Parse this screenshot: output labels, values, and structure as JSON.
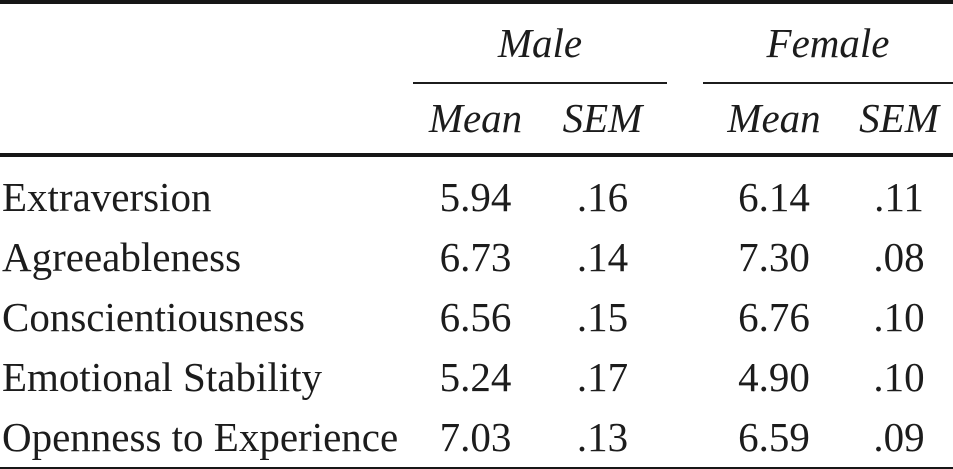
{
  "table": {
    "groups": [
      {
        "label": "Male"
      },
      {
        "label": "Female"
      }
    ],
    "subheaders": [
      "Mean",
      "SEM",
      "Mean",
      "SEM"
    ],
    "rows": [
      {
        "label": "Extraversion",
        "values": [
          "5.94",
          ".16",
          "6.14",
          ".11"
        ]
      },
      {
        "label": "Agreeableness",
        "values": [
          "6.73",
          ".14",
          "7.30",
          ".08"
        ]
      },
      {
        "label": "Conscientiousness",
        "values": [
          "6.56",
          ".15",
          "6.76",
          ".10"
        ]
      },
      {
        "label": "Emotional Stability",
        "values": [
          "5.24",
          ".17",
          "4.90",
          ".10"
        ]
      },
      {
        "label": "Openness to Experience",
        "values": [
          "7.03",
          ".13",
          "6.59",
          ".09"
        ]
      }
    ]
  },
  "colors": {
    "text": "#1c1c1c",
    "rule": "#161616",
    "background": "#ffffff"
  }
}
